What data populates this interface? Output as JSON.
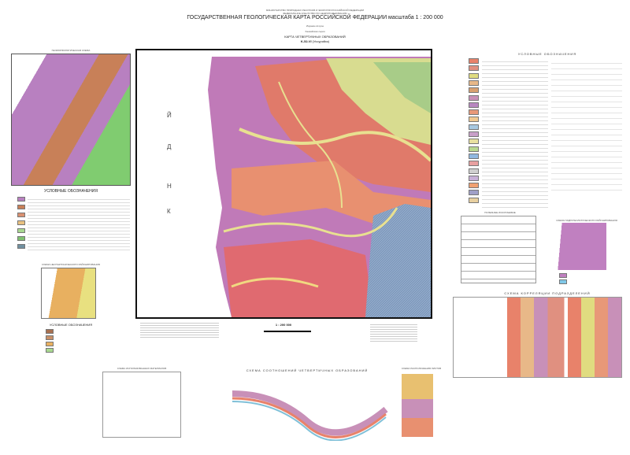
{
  "header": {
    "ministry": "МИНИСТЕРСТВО ПРИРОДНЫХ РЕСУРСОВ И ЭКОЛОГИИ РОССИЙСКОЙ ФЕДЕРАЦИИ",
    "agency": "ФЕДЕРАЛЬНОЕ АГЕНТСТВО ПО НЕДРОПОЛЬЗОВАНИЮ",
    "title": "ГОСУДАРСТВЕННАЯ ГЕОЛОГИЧЕСКАЯ КАРТА РОССИЙСКОЙ ФЕДЕРАЦИИ масштаба 1 : 200 000",
    "edition": "Издание второе",
    "series": "Ханкайская серия",
    "map_title": "КАРТА ЧЕТВЕРТИЧНЫХ ОБРАЗОВАНИЙ",
    "sheet": "K-52-VI",
    "sheet_name": "(Уссурийск)"
  },
  "map": {
    "scale": "1 : 200 000",
    "sea_letters": [
      "Й",
      "Д",
      "Н",
      "К"
    ]
  },
  "left": {
    "geomorph_title": "ГЕОМОРФОЛОГИЧЕСКАЯ СХЕМА",
    "legend_title": "УСЛОВНЫЕ ОБОЗНАЧЕНИЯ",
    "scheme2_title": "СХЕМА НЕОТЕКТОНИЧЕСКОГО РАЙОНИРОВАНИЯ",
    "legend2_title": "УСЛОВНЫЕ ОБОЗНАЧЕНИЯ"
  },
  "right": {
    "legend_title": "УСЛОВНЫЕ ОБОЗНАЧЕНИЯ",
    "legend_colors": [
      "#e8826a",
      "#e09080",
      "#e0dc80",
      "#e8b888",
      "#d8a070",
      "#c890b8",
      "#b888c0",
      "#e89878",
      "#f0c890",
      "#a8c8e0",
      "#c8a0c8",
      "#e8e0a0",
      "#b8d890",
      "#90b8e0",
      "#e8a0a0",
      "#d0d0d0",
      "#c8b0d8",
      "#f0a070",
      "#a0a0c8",
      "#e8d0a0"
    ],
    "tables_title": "ПОЛЕЗНЫЕ ИСКОПАЕМЫЕ",
    "inset_title": "СХЕМА ГИДРОГЕОЛОГИЧЕСКОГО РАЙОНИРОВАНИЯ",
    "correlation_title": "СХЕМА КОРРЕЛЯЦИИ ПОДРАЗДЕЛЕНИЙ"
  },
  "bottom": {
    "materials_title": "СХЕМА ИСПОЛЬЗОВАННЫХ МАТЕРИАЛОВ",
    "section_title": "СХЕМА СООТНОШЕНИЙ ЧЕТВЕРТИЧНЫХ ОБРАЗОВАНИЙ",
    "inset_title": "СХЕМА РАСПОЛОЖЕНИЯ ЛИСТОВ"
  }
}
